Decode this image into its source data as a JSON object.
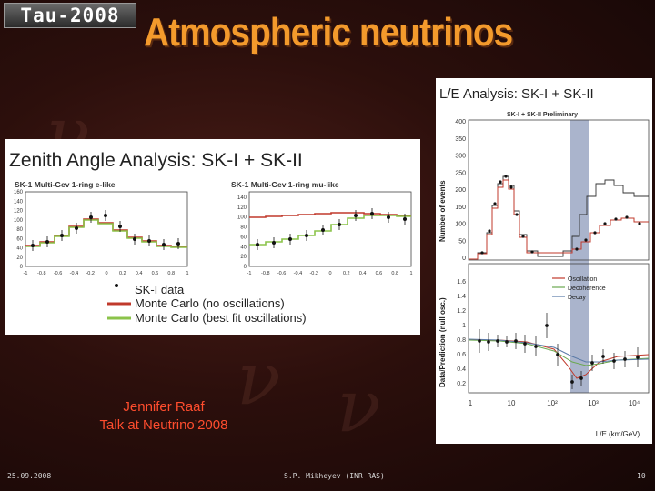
{
  "header": {
    "logo_text": "Tau-2008",
    "title": "Atmospheric neutrinos"
  },
  "zenith": {
    "heading": "Zenith Angle Analysis: SK-I + SK-II",
    "plot_e": {
      "title": "SK-1 Multi-Gev 1-ring e-like",
      "yticks": [
        "160",
        "140",
        "120",
        "100",
        "80",
        "60",
        "40",
        "20",
        "0"
      ],
      "xticks": [
        "-1",
        "-0.8",
        "-0.6",
        "-0.4",
        "-0.2",
        "0",
        "0.2",
        "0.4",
        "0.6",
        "0.8",
        "1"
      ]
    },
    "plot_mu": {
      "title": "SK-1 Multi-Gev 1-ring mu-like",
      "yticks": [
        "140",
        "120",
        "100",
        "80",
        "60",
        "40",
        "20",
        "0"
      ],
      "xticks": [
        "-1",
        "-0.8",
        "-0.6",
        "-0.4",
        "-0.2",
        "0",
        "0.2",
        "0.4",
        "0.6",
        "0.8",
        "1"
      ]
    },
    "legend": [
      "SK-I data",
      "Monte Carlo (no oscillations)",
      "Monte Carlo (best fit oscillations)"
    ]
  },
  "le": {
    "heading": "L/E Analysis: SK-I + SK-II",
    "subtitle": "SK-I + SK-II Preliminary",
    "top_ylabel": "Number of events",
    "top_yticks": [
      "400",
      "350",
      "300",
      "250",
      "200",
      "150",
      "100",
      "50",
      "0"
    ],
    "bottom_ylabel": "Data/Prediction (null osc.)",
    "bottom_yticks": [
      "1.6",
      "1.4",
      "1.2",
      "1",
      "0.8",
      "0.6",
      "0.4",
      "0.2"
    ],
    "xticks": [
      "1",
      "10",
      "10²",
      "10³",
      "10⁴"
    ],
    "xlabel": "L/E (km/GeV)",
    "legend": [
      "Oscillation",
      "Decoherence",
      "Decay"
    ]
  },
  "credit": {
    "line1": "Jennifer Raaf",
    "line2": "Talk at Neutrino’2008"
  },
  "footer": {
    "date": "25.09.2008",
    "author": "S.P. Mikheyev (INR RAS)",
    "page": "10"
  }
}
